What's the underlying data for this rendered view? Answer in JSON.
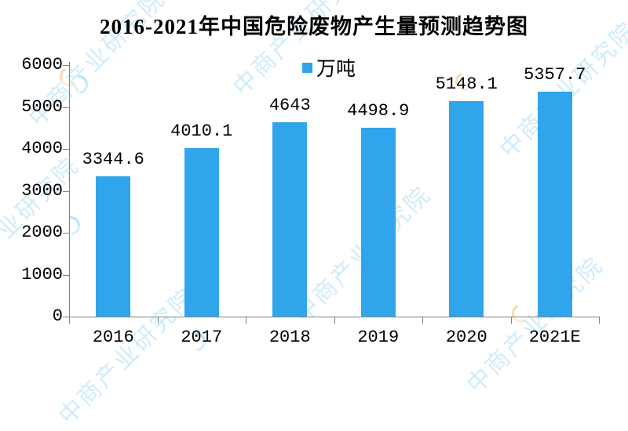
{
  "watermark": {
    "text": "中商产业研究院",
    "color_blue": "#a8ddf5",
    "color_orange": "#f9c382"
  },
  "chart_data": {
    "type": "bar",
    "title": "2016-2021年中国危险废物产生量预测趋势图",
    "legend": "万吨",
    "legend_position": "top-center",
    "categories": [
      "2016",
      "2017",
      "2018",
      "2019",
      "2020",
      "2021E"
    ],
    "values": [
      3344.6,
      4010.1,
      4643,
      4498.9,
      5148.1,
      5357.7
    ],
    "value_labels": [
      "3344.6",
      "4010.1",
      "4643",
      "4498.9",
      "5148.1",
      "5357.7"
    ],
    "xlabel": "",
    "ylabel": "",
    "ylim": [
      0,
      6000
    ],
    "yticks": [
      0,
      1000,
      2000,
      3000,
      4000,
      5000,
      6000
    ],
    "grid": false,
    "bar_color": "#31a5ec",
    "axis_color": "#808080",
    "text_color": "#000000"
  }
}
